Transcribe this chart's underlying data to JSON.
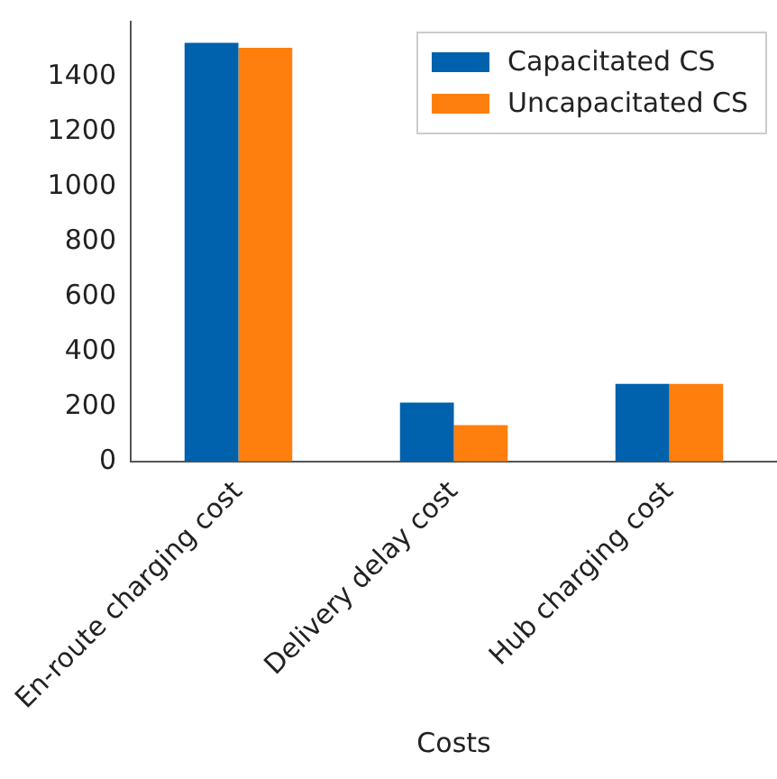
{
  "chart_data": {
    "type": "bar",
    "xlabel": "Costs",
    "categories": [
      "En-route charging cost",
      "Delivery delay cost",
      "Hub charging cost"
    ],
    "series": [
      {
        "name": "Capacitated CS",
        "color": "#0061ac",
        "values": [
          1523,
          214,
          282
        ]
      },
      {
        "name": "Uncapacitated CS",
        "color": "#ff7f0e",
        "values": [
          1505,
          132,
          282
        ]
      }
    ],
    "ylim": [
      0,
      1600
    ],
    "yticks": [
      0,
      200,
      400,
      600,
      800,
      1000,
      1200,
      1400
    ],
    "grid": false,
    "legend": "top right"
  }
}
